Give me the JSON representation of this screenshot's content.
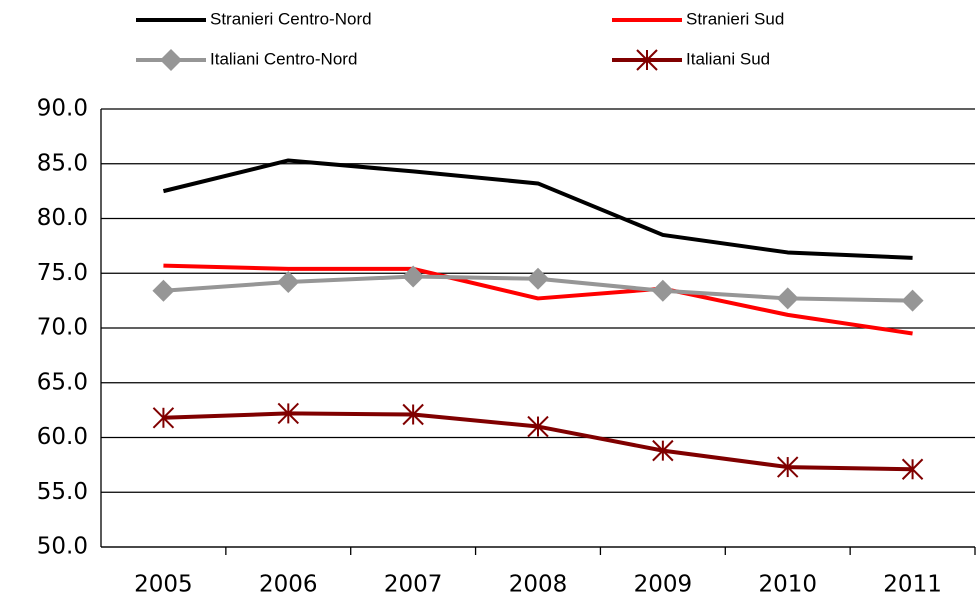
{
  "chart_data": {
    "type": "line",
    "categories": [
      "2005",
      "2006",
      "2007",
      "2008",
      "2009",
      "2010",
      "2011"
    ],
    "series": [
      {
        "name": "Stranieri Centro-Nord",
        "color": "#000000",
        "marker": "none",
        "values": [
          82.5,
          85.3,
          84.3,
          83.2,
          78.5,
          76.9,
          76.4
        ]
      },
      {
        "name": "Stranieri Sud",
        "color": "#ff0000",
        "marker": "none",
        "values": [
          75.7,
          75.4,
          75.4,
          72.7,
          73.6,
          71.2,
          69.5
        ]
      },
      {
        "name": "Italiani Centro-Nord",
        "color": "#969696",
        "marker": "diamond",
        "values": [
          73.4,
          74.2,
          74.7,
          74.5,
          73.4,
          72.7,
          72.5
        ]
      },
      {
        "name": "Italiani Sud",
        "color": "#800000",
        "marker": "asterisk",
        "values": [
          61.8,
          62.2,
          62.1,
          61.0,
          58.8,
          57.3,
          57.1
        ]
      }
    ],
    "ylim": [
      50,
      90
    ],
    "yticks": [
      {
        "value": 50,
        "label": "50.0"
      },
      {
        "value": 55,
        "label": "55.0"
      },
      {
        "value": 60,
        "label": "60.0"
      },
      {
        "value": 65,
        "label": "65.0"
      },
      {
        "value": 70,
        "label": "70.0"
      },
      {
        "value": 75,
        "label": "75.0"
      },
      {
        "value": 80,
        "label": "80.0"
      },
      {
        "value": 85,
        "label": "85.0"
      },
      {
        "value": 90,
        "label": "90.0"
      }
    ],
    "grid": true,
    "legend": "top"
  }
}
